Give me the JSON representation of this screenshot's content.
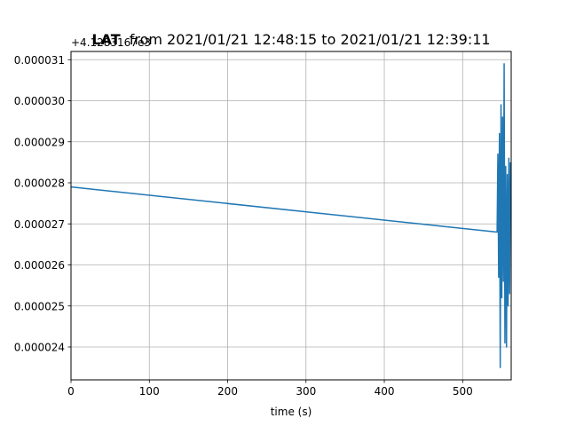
{
  "chart_data": {
    "type": "line",
    "title_bold": "LAT",
    "title_rest": "from 2021/01/21 12:48:15 to 2021/01/21 12:39:11",
    "offset_label": "+4.1283167e3",
    "xlabel": "time (s)",
    "ylabel": "",
    "xlim": [
      0,
      562
    ],
    "ylim": [
      2.32e-05,
      3.12e-05
    ],
    "grid": true,
    "x_ticks": [
      0,
      100,
      200,
      300,
      400,
      500
    ],
    "x_tick_labels": [
      "0",
      "100",
      "200",
      "300",
      "400",
      "500"
    ],
    "y_ticks": [
      2.4e-05,
      2.5e-05,
      2.6e-05,
      2.7e-05,
      2.8e-05,
      2.9e-05,
      3e-05,
      3.1e-05
    ],
    "y_tick_labels": [
      "0.000024",
      "0.000025",
      "0.000026",
      "0.000027",
      "0.000028",
      "0.000029",
      "0.000030",
      "0.000031"
    ],
    "color": "#1f77b4",
    "series": [
      {
        "x": [
          0,
          544,
          545,
          546,
          547,
          548,
          549,
          550,
          551,
          552,
          553,
          554,
          555,
          556,
          557,
          558,
          559,
          560,
          561
        ],
        "y": [
          2.79e-05,
          2.68e-05,
          2.87e-05,
          2.57e-05,
          2.92e-05,
          2.35e-05,
          2.99e-05,
          2.52e-05,
          2.96e-05,
          2.56e-05,
          3.09e-05,
          2.41e-05,
          2.84e-05,
          2.4e-05,
          2.82e-05,
          2.5e-05,
          2.86e-05,
          2.53e-05,
          2.85e-05
        ]
      }
    ]
  }
}
